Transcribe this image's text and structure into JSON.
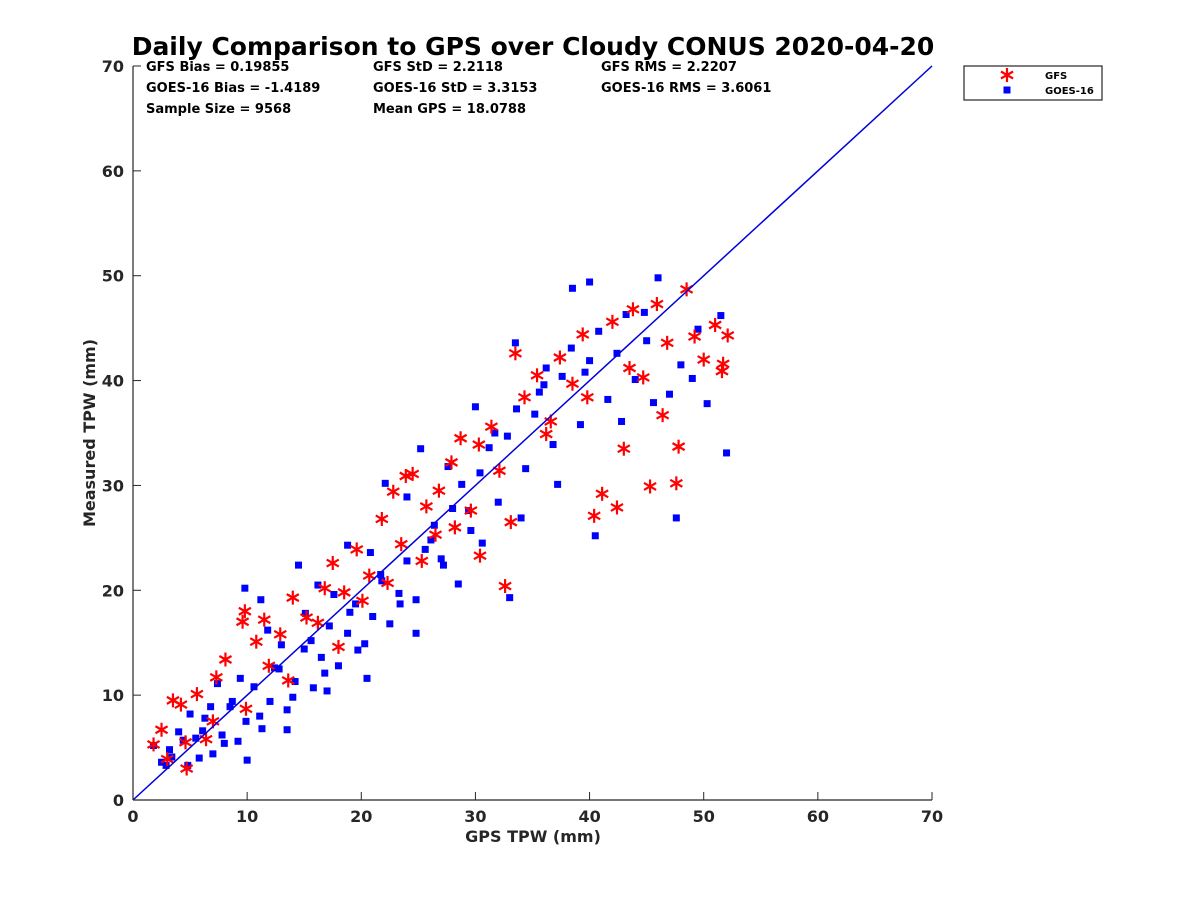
{
  "chart_data": {
    "type": "scatter",
    "title": "Daily Comparison to GPS over Cloudy CONUS 2020-04-20",
    "xlabel": "GPS TPW (mm)",
    "ylabel": "Measured TPW (mm)",
    "xlim": [
      0,
      70
    ],
    "ylim": [
      0,
      70
    ],
    "xticks": [
      0,
      10,
      20,
      30,
      40,
      50,
      60,
      70
    ],
    "yticks": [
      0,
      10,
      20,
      30,
      40,
      50,
      60,
      70
    ],
    "grid": false,
    "legend_position": "outside-top-right",
    "stats": [
      "GFS Bias = 0.19855",
      "GFS StD = 2.2118",
      "GFS RMS = 2.2207",
      "GOES-16 Bias = -1.4189",
      "GOES-16 StD = 3.3153",
      "GOES-16 RMS = 3.6061",
      "Sample Size = 9568",
      "Mean GPS = 18.0788"
    ],
    "reference_line": {
      "x": [
        0,
        70
      ],
      "y": [
        0,
        70
      ],
      "color": "#0000dd"
    },
    "series": [
      {
        "name": "GOES-16",
        "marker": "square",
        "color": "#0000ff",
        "points": [
          [
            1.8,
            5.2
          ],
          [
            2.5,
            3.6
          ],
          [
            3.2,
            4.8
          ],
          [
            4.0,
            6.5
          ],
          [
            4.8,
            3.3
          ],
          [
            5.5,
            5.9
          ],
          [
            6.3,
            7.8
          ],
          [
            7.0,
            4.4
          ],
          [
            7.8,
            6.2
          ],
          [
            8.5,
            8.9
          ],
          [
            9.2,
            5.6
          ],
          [
            9.9,
            7.5
          ],
          [
            10.6,
            10.8
          ],
          [
            11.3,
            6.8
          ],
          [
            12.0,
            9.4
          ],
          [
            12.8,
            12.5
          ],
          [
            13.5,
            8.6
          ],
          [
            14.2,
            11.3
          ],
          [
            15.0,
            14.4
          ],
          [
            15.8,
            10.7
          ],
          [
            16.5,
            13.6
          ],
          [
            17.2,
            16.6
          ],
          [
            18.0,
            12.8
          ],
          [
            18.8,
            15.9
          ],
          [
            19.5,
            18.7
          ],
          [
            20.3,
            14.9
          ],
          [
            21.0,
            17.5
          ],
          [
            21.8,
            20.9
          ],
          [
            22.5,
            16.8
          ],
          [
            23.3,
            19.7
          ],
          [
            24.0,
            22.8
          ],
          [
            24.8,
            19.1
          ],
          [
            25.6,
            23.9
          ],
          [
            26.4,
            26.2
          ],
          [
            27.2,
            22.4
          ],
          [
            28.0,
            27.8
          ],
          [
            28.8,
            30.1
          ],
          [
            29.6,
            25.7
          ],
          [
            30.4,
            31.2
          ],
          [
            31.2,
            33.6
          ],
          [
            32.0,
            28.4
          ],
          [
            32.8,
            34.7
          ],
          [
            33.6,
            37.3
          ],
          [
            34.4,
            31.6
          ],
          [
            35.2,
            36.8
          ],
          [
            36.0,
            39.6
          ],
          [
            36.8,
            33.9
          ],
          [
            37.6,
            40.4
          ],
          [
            38.4,
            43.1
          ],
          [
            39.2,
            35.8
          ],
          [
            40.0,
            41.9
          ],
          [
            40.8,
            44.7
          ],
          [
            41.6,
            38.2
          ],
          [
            42.4,
            42.6
          ],
          [
            43.2,
            46.3
          ],
          [
            44.0,
            40.1
          ],
          [
            45.0,
            43.8
          ],
          [
            46.0,
            49.8
          ],
          [
            47.0,
            38.7
          ],
          [
            48.0,
            41.5
          ],
          [
            49.5,
            44.9
          ],
          [
            51.5,
            46.2
          ],
          [
            52.0,
            33.1
          ],
          [
            47.6,
            26.9
          ],
          [
            40.5,
            25.2
          ],
          [
            33.0,
            19.3
          ],
          [
            28.5,
            20.6
          ],
          [
            24.8,
            15.9
          ],
          [
            20.5,
            11.6
          ],
          [
            17.0,
            10.4
          ],
          [
            13.5,
            6.7
          ],
          [
            10.0,
            3.8
          ],
          [
            9.8,
            20.2
          ],
          [
            11.2,
            19.1
          ],
          [
            14.5,
            22.4
          ],
          [
            18.8,
            24.3
          ],
          [
            22.1,
            30.2
          ],
          [
            25.2,
            33.5
          ],
          [
            30.0,
            37.5
          ],
          [
            33.5,
            43.6
          ],
          [
            38.5,
            48.8
          ],
          [
            40.0,
            49.4
          ],
          [
            44.8,
            46.5
          ],
          [
            36.2,
            41.2
          ],
          [
            29.4,
            27.6
          ],
          [
            26.1,
            24.8
          ],
          [
            21.7,
            21.5
          ],
          [
            19.0,
            17.9
          ],
          [
            15.6,
            15.2
          ],
          [
            12.4,
            12.6
          ],
          [
            8.7,
            9.4
          ],
          [
            6.1,
            6.6
          ],
          [
            3.4,
            4.1
          ],
          [
            5.0,
            8.2
          ],
          [
            7.4,
            11.1
          ],
          [
            11.8,
            16.2
          ],
          [
            16.2,
            20.5
          ],
          [
            20.8,
            23.6
          ],
          [
            24.0,
            28.9
          ],
          [
            27.6,
            31.8
          ],
          [
            31.7,
            35.0
          ],
          [
            35.6,
            38.9
          ],
          [
            39.6,
            40.8
          ],
          [
            42.8,
            36.1
          ],
          [
            45.6,
            37.9
          ],
          [
            49.0,
            40.2
          ],
          [
            50.3,
            37.8
          ],
          [
            37.2,
            30.1
          ],
          [
            34.0,
            26.9
          ],
          [
            30.6,
            24.5
          ],
          [
            27.0,
            23.0
          ],
          [
            23.4,
            18.7
          ],
          [
            19.7,
            14.3
          ],
          [
            16.8,
            12.1
          ],
          [
            14.0,
            9.8
          ],
          [
            11.1,
            8.0
          ],
          [
            8.0,
            5.4
          ],
          [
            5.8,
            4.0
          ],
          [
            2.9,
            3.3
          ],
          [
            15.1,
            17.8
          ],
          [
            17.6,
            19.6
          ],
          [
            13.0,
            14.8
          ],
          [
            9.4,
            11.6
          ],
          [
            6.8,
            8.9
          ],
          [
            4.4,
            5.7
          ]
        ]
      },
      {
        "name": "GFS",
        "marker": "asterisk",
        "color": "#ff0000",
        "points": [
          [
            1.8,
            5.3
          ],
          [
            2.5,
            6.7
          ],
          [
            3.5,
            9.5
          ],
          [
            4.2,
            9.1
          ],
          [
            4.7,
            3.0
          ],
          [
            5.6,
            10.1
          ],
          [
            6.4,
            5.8
          ],
          [
            7.3,
            11.7
          ],
          [
            8.1,
            13.4
          ],
          [
            9.6,
            17.0
          ],
          [
            9.8,
            18.0
          ],
          [
            10.8,
            15.1
          ],
          [
            11.5,
            17.2
          ],
          [
            12.9,
            15.8
          ],
          [
            14.0,
            19.3
          ],
          [
            15.2,
            17.4
          ],
          [
            16.8,
            20.2
          ],
          [
            17.5,
            22.6
          ],
          [
            18.5,
            19.8
          ],
          [
            19.6,
            23.9
          ],
          [
            20.7,
            21.4
          ],
          [
            21.8,
            26.8
          ],
          [
            22.8,
            29.4
          ],
          [
            23.9,
            30.9
          ],
          [
            24.5,
            31.1
          ],
          [
            25.7,
            28.0
          ],
          [
            26.8,
            29.5
          ],
          [
            27.9,
            32.2
          ],
          [
            28.7,
            34.5
          ],
          [
            29.6,
            27.6
          ],
          [
            30.3,
            33.9
          ],
          [
            31.4,
            35.6
          ],
          [
            32.6,
            20.4
          ],
          [
            33.1,
            26.5
          ],
          [
            33.5,
            42.6
          ],
          [
            34.3,
            38.4
          ],
          [
            35.4,
            40.5
          ],
          [
            36.6,
            36.1
          ],
          [
            37.4,
            42.2
          ],
          [
            38.5,
            39.7
          ],
          [
            39.4,
            44.4
          ],
          [
            40.4,
            27.1
          ],
          [
            41.1,
            29.2
          ],
          [
            42.0,
            45.6
          ],
          [
            42.4,
            27.9
          ],
          [
            43.0,
            33.5
          ],
          [
            43.8,
            46.8
          ],
          [
            44.7,
            40.3
          ],
          [
            45.3,
            29.9
          ],
          [
            45.9,
            47.3
          ],
          [
            46.4,
            36.7
          ],
          [
            47.6,
            30.2
          ],
          [
            47.8,
            33.7
          ],
          [
            48.5,
            48.7
          ],
          [
            49.2,
            44.2
          ],
          [
            50.0,
            42.0
          ],
          [
            51.0,
            45.3
          ],
          [
            51.7,
            41.6
          ],
          [
            51.6,
            40.9
          ],
          [
            52.1,
            44.3
          ],
          [
            30.4,
            23.3
          ],
          [
            26.5,
            25.3
          ],
          [
            22.3,
            20.7
          ],
          [
            18.0,
            14.6
          ],
          [
            13.6,
            11.4
          ],
          [
            9.9,
            8.7
          ],
          [
            7.0,
            7.5
          ],
          [
            4.6,
            5.5
          ],
          [
            3.0,
            3.9
          ],
          [
            25.3,
            22.8
          ],
          [
            28.2,
            26.0
          ],
          [
            32.1,
            31.4
          ],
          [
            36.2,
            34.9
          ],
          [
            39.8,
            38.4
          ],
          [
            43.5,
            41.2
          ],
          [
            46.8,
            43.6
          ],
          [
            16.2,
            16.9
          ],
          [
            20.1,
            19.0
          ],
          [
            23.5,
            24.4
          ],
          [
            11.9,
            12.8
          ]
        ]
      }
    ]
  }
}
